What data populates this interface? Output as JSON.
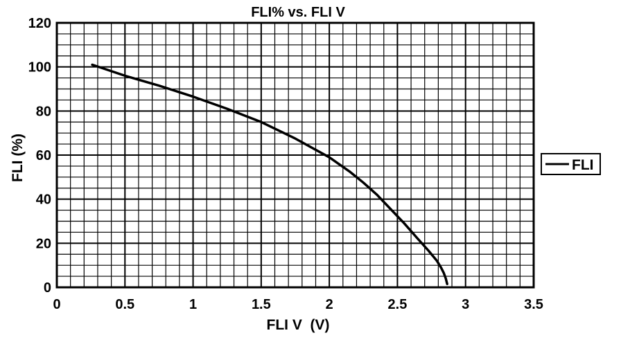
{
  "chart_data": {
    "type": "line",
    "title": "FLI% vs. FLI V",
    "xlabel": "FLI V  (V)",
    "ylabel": "FLI (%)",
    "xlim": [
      0,
      3.5
    ],
    "ylim": [
      0,
      120
    ],
    "x_ticks": [
      "0",
      "0.5",
      "1",
      "1.5",
      "2",
      "2.5",
      "3",
      "3.5"
    ],
    "y_ticks": [
      "0",
      "20",
      "40",
      "60",
      "80",
      "100",
      "120"
    ],
    "grid": true,
    "legend_position": "right",
    "series": [
      {
        "name": "FLI",
        "color": "#000000",
        "x": [
          0.26,
          0.5,
          0.75,
          1.0,
          1.25,
          1.5,
          1.75,
          2.0,
          2.15,
          2.25,
          2.35,
          2.45,
          2.55,
          2.65,
          2.73,
          2.79,
          2.82,
          2.84,
          2.855,
          2.865
        ],
        "y": [
          101,
          96,
          91.5,
          86.5,
          81,
          75,
          67.5,
          59,
          52.5,
          47.5,
          42,
          35.5,
          29,
          22,
          16.5,
          12,
          9,
          6.5,
          4,
          1.5
        ]
      }
    ]
  }
}
